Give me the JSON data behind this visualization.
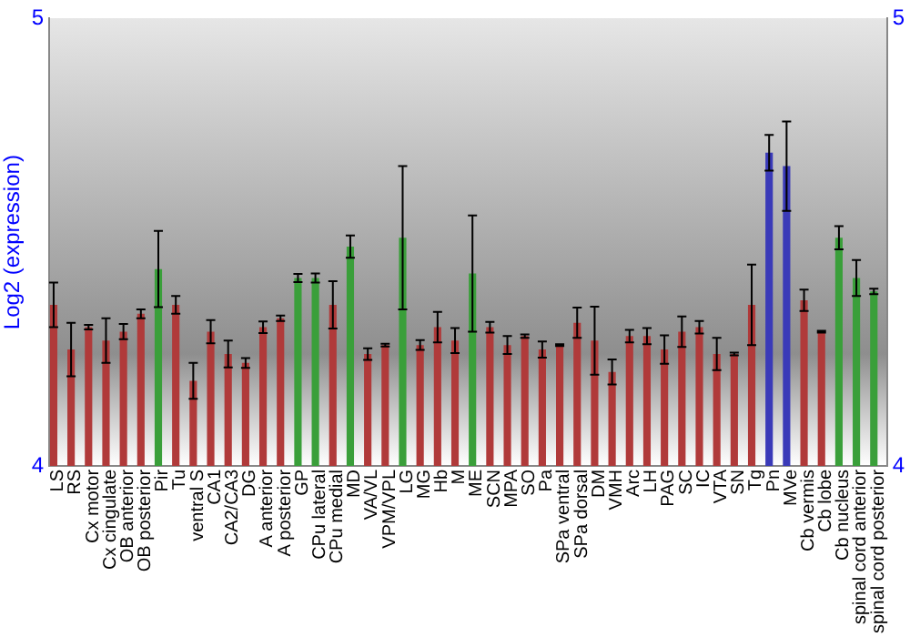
{
  "chart_data": {
    "type": "bar",
    "ylabel": "Log2 (expression)",
    "categories": [
      "LS",
      "RS",
      "Cx motor",
      "Cx cingulate",
      "OB anterior",
      "OB posterior",
      "Pir",
      "Tu",
      "ventral S",
      "CA1",
      "CA2/CA3",
      "DG",
      "A anterior",
      "A posterior",
      "GP",
      "CPu lateral",
      "CPu medial",
      "MD",
      "VA/VL",
      "VPM/VPL",
      "LG",
      "MG",
      "Hb",
      "M",
      "ME",
      "SCN",
      "MPA",
      "SO",
      "Pa",
      "SPa ventral",
      "SPa dorsal",
      "DM",
      "VMH",
      "Arc",
      "LH",
      "PAG",
      "SC",
      "IC",
      "VTA",
      "SN",
      "Tg",
      "Pn",
      "MVe",
      "Cb vermis",
      "Cb lobe",
      "Cb nucleus",
      "spinal cord anterior",
      "spinal cord posterior"
    ],
    "values": [
      4.36,
      4.26,
      4.31,
      4.28,
      4.3,
      4.34,
      4.44,
      4.36,
      4.19,
      4.3,
      4.25,
      4.23,
      4.31,
      4.33,
      4.42,
      4.42,
      4.36,
      4.49,
      4.25,
      4.27,
      4.51,
      4.27,
      4.31,
      4.28,
      4.43,
      4.31,
      4.27,
      4.29,
      4.26,
      4.27,
      4.32,
      4.28,
      4.21,
      4.29,
      4.29,
      4.26,
      4.3,
      4.31,
      4.25,
      4.25,
      4.36,
      4.7,
      4.67,
      4.37,
      4.3,
      4.51,
      4.42,
      4.39
    ],
    "errors": [
      0.05,
      0.06,
      0.005,
      0.05,
      0.017,
      0.01,
      0.085,
      0.02,
      0.04,
      0.026,
      0.03,
      0.011,
      0.013,
      0.006,
      0.009,
      0.01,
      0.053,
      0.025,
      0.013,
      0.003,
      0.16,
      0.011,
      0.034,
      0.028,
      0.13,
      0.012,
      0.02,
      0.004,
      0.018,
      0.002,
      0.034,
      0.076,
      0.028,
      0.014,
      0.018,
      0.032,
      0.034,
      0.014,
      0.036,
      0.003,
      0.09,
      0.04,
      0.1,
      0.024,
      0.002,
      0.026,
      0.04,
      0.006
    ],
    "colors": [
      "#b03a3a",
      "#b03a3a",
      "#b03a3a",
      "#b03a3a",
      "#b03a3a",
      "#b03a3a",
      "#3a9f3a",
      "#b03a3a",
      "#b03a3a",
      "#b03a3a",
      "#b03a3a",
      "#b03a3a",
      "#b03a3a",
      "#b03a3a",
      "#3a9f3a",
      "#3a9f3a",
      "#b03a3a",
      "#3a9f3a",
      "#b03a3a",
      "#b03a3a",
      "#3a9f3a",
      "#b03a3a",
      "#b03a3a",
      "#b03a3a",
      "#3a9f3a",
      "#b03a3a",
      "#b03a3a",
      "#b03a3a",
      "#b03a3a",
      "#b03a3a",
      "#b03a3a",
      "#b03a3a",
      "#b03a3a",
      "#b03a3a",
      "#b03a3a",
      "#b03a3a",
      "#b03a3a",
      "#b03a3a",
      "#b03a3a",
      "#b03a3a",
      "#b03a3a",
      "#3a3ab8",
      "#3a3ab8",
      "#b03a3a",
      "#b03a3a",
      "#3a9f3a",
      "#3a9f3a",
      "#3a9f3a"
    ],
    "ylim": [
      4,
      5
    ],
    "yticks": [
      4,
      5
    ],
    "y2lim": [
      4,
      5
    ],
    "y2ticks": [
      4,
      5
    ],
    "grid": false,
    "legend": false
  }
}
